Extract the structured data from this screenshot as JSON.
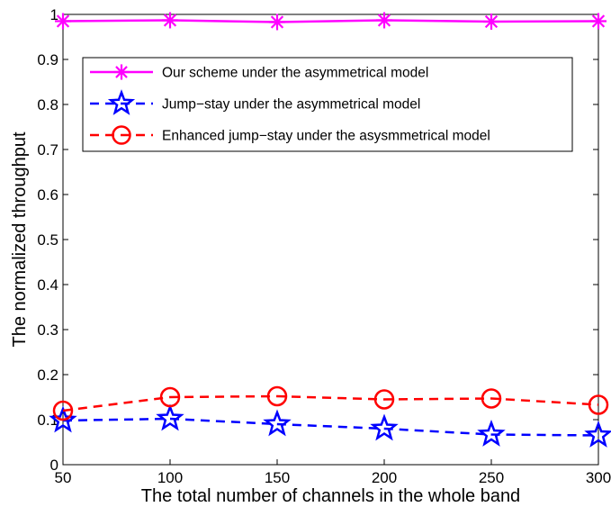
{
  "chart_data": {
    "type": "line",
    "title": "",
    "xlabel": "The total number of channels in the whole band",
    "ylabel": "The normalized throughput",
    "x": [
      50,
      100,
      150,
      200,
      250,
      300
    ],
    "xlim": [
      50,
      300
    ],
    "ylim": [
      0,
      1
    ],
    "xticks": [
      "50",
      "100",
      "150",
      "200",
      "250",
      "300"
    ],
    "yticks": [
      "0",
      "0.1",
      "0.2",
      "0.3",
      "0.4",
      "0.5",
      "0.6",
      "0.7",
      "0.8",
      "0.9",
      "1"
    ],
    "grid": false,
    "legend_position": "top",
    "series": [
      {
        "name": "Our scheme under the asymmetrical model",
        "values": [
          0.985,
          0.987,
          0.983,
          0.987,
          0.984,
          0.985
        ],
        "color": "#ff00ff",
        "line": "solid",
        "marker": "asterisk"
      },
      {
        "name": "Jump−stay under the asymmetrical model",
        "values": [
          0.098,
          0.102,
          0.09,
          0.08,
          0.067,
          0.065
        ],
        "color": "#0000ff",
        "line": "dashed",
        "marker": "star"
      },
      {
        "name": "Enhanced jump−stay under the asysmmetrical model",
        "values": [
          0.12,
          0.15,
          0.152,
          0.145,
          0.147,
          0.133
        ],
        "color": "#ff0000",
        "line": "dashed",
        "marker": "circle"
      }
    ]
  }
}
